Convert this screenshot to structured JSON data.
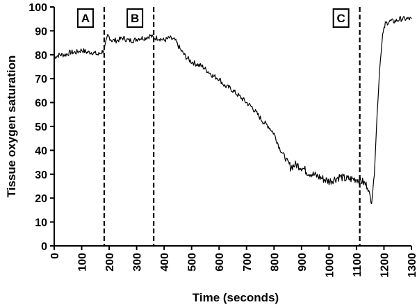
{
  "chart_data": {
    "type": "line",
    "xlabel": "Time (seconds)",
    "ylabel": "Tissue oxygen saturation",
    "xlim": [
      0,
      1300
    ],
    "ylim": [
      0,
      100
    ],
    "xticks": [
      0,
      100,
      200,
      300,
      400,
      500,
      600,
      700,
      800,
      900,
      1000,
      1100,
      1200,
      1300
    ],
    "yticks": [
      0,
      10,
      20,
      30,
      40,
      50,
      60,
      70,
      80,
      90,
      100
    ],
    "grid": false,
    "series": [
      {
        "x": [
          0,
          20,
          40,
          60,
          80,
          100,
          120,
          140,
          160,
          182,
          195,
          210,
          230,
          250,
          270,
          290,
          310,
          330,
          350,
          362,
          380,
          400,
          420,
          440,
          460,
          480,
          500,
          520,
          540,
          560,
          580,
          600,
          620,
          640,
          660,
          680,
          700,
          720,
          740,
          760,
          780,
          800,
          820,
          840,
          860,
          880,
          900,
          920,
          940,
          960,
          980,
          1000,
          1020,
          1040,
          1060,
          1080,
          1100,
          1120,
          1140,
          1155,
          1165,
          1175,
          1185,
          1195,
          1205,
          1220,
          1240,
          1260,
          1280,
          1300
        ],
        "y": [
          79,
          80,
          80,
          81,
          81,
          82,
          81,
          81,
          80,
          82,
          88,
          86,
          86,
          87,
          86,
          86,
          87,
          87,
          88,
          87,
          87,
          86,
          87,
          86,
          82,
          79,
          77,
          76,
          75,
          73,
          71,
          70,
          67,
          66,
          64,
          62,
          60,
          58,
          55,
          52,
          50,
          47,
          41,
          37,
          33,
          34,
          33,
          31,
          30,
          29,
          28,
          27,
          28,
          29,
          28,
          28,
          28,
          27,
          25,
          18,
          30,
          55,
          75,
          88,
          93,
          94,
          94,
          95,
          95,
          95
        ]
      }
    ],
    "markers": [
      {
        "x": 182,
        "label": "A"
      },
      {
        "x": 362,
        "label": "B"
      },
      {
        "x": 1112,
        "label": "C"
      }
    ]
  }
}
